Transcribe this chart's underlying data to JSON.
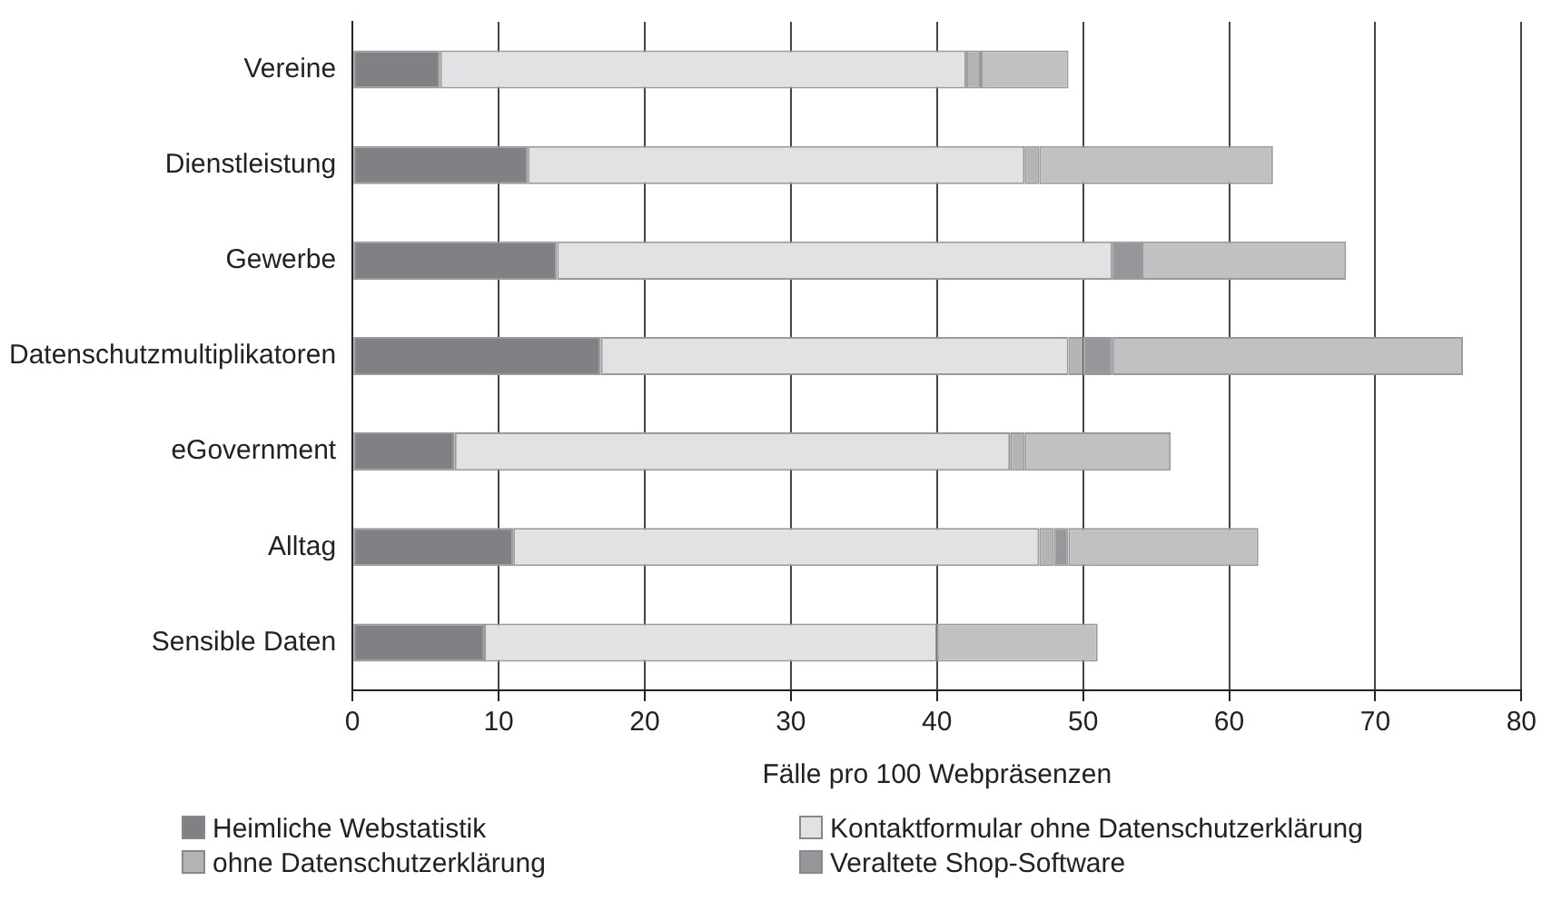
{
  "chart_data": {
    "type": "bar",
    "orientation": "horizontal",
    "stacked": true,
    "xlabel": "Fälle pro 100 Webpräsenzen",
    "categories": [
      "Vereine",
      "Dienstleistung",
      "Gewerbe",
      "Datenschutzmultiplikatoren",
      "eGovernment",
      "Alltag",
      "Sensible Daten"
    ],
    "series": [
      {
        "name": "Heimliche Webstatistik",
        "color": "#808085",
        "values": [
          6,
          12,
          14,
          17,
          7,
          11,
          9
        ]
      },
      {
        "name": "Kontaktformular ohne Datenschutzerklärung",
        "color": "#e1e2e4",
        "values": [
          36,
          34,
          38,
          32,
          38,
          36,
          31
        ]
      },
      {
        "name": "ohne Datenschutzerklärung",
        "color": "#b4b4b6",
        "values": [
          1,
          1,
          0,
          1,
          1,
          1,
          0
        ]
      },
      {
        "name": "Veraltete Shop-Software",
        "color": "#97979b",
        "values": [
          0,
          0,
          2,
          2,
          0,
          1,
          0
        ]
      },
      {
        "color": "#c0c1c3",
        "values": [
          6,
          16,
          14,
          24,
          10,
          13,
          11
        ]
      }
    ],
    "xlim": [
      0,
      80
    ],
    "xticks": [
      0,
      10,
      20,
      30,
      40,
      50,
      60,
      70,
      80
    ],
    "grid": "x",
    "legend": "bottom"
  }
}
